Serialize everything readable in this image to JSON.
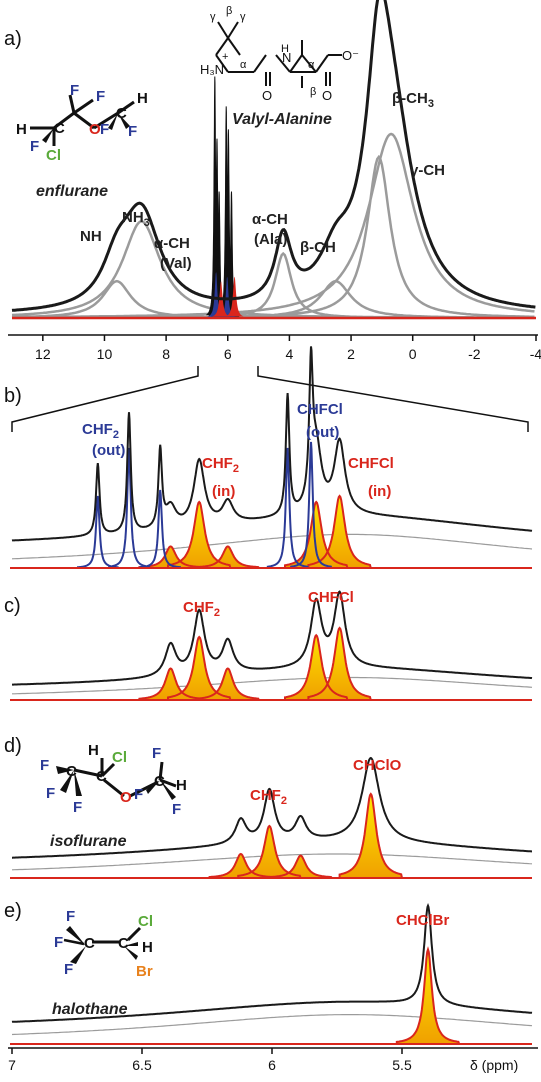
{
  "colors": {
    "black": "#1a1a1a",
    "gray": "#9b9b9b",
    "lightgray": "#b8b8b8",
    "red": "#d9261c",
    "blue": "#2b3a96",
    "fill_top": "#ffe000",
    "fill_bottom": "#f2a900",
    "green": "#5aaa3a",
    "orange": "#e8821e"
  },
  "panels": {
    "a": {
      "label": "a)",
      "molecule": "enflurane",
      "peptide": "Valyl-Alanine"
    },
    "b": {
      "label": "b)"
    },
    "c": {
      "label": "c)"
    },
    "d": {
      "label": "d)",
      "molecule": "isoflurane"
    },
    "e": {
      "label": "e)",
      "molecule": "halothane"
    }
  },
  "chart_data": [
    {
      "panel": "a",
      "type": "line",
      "xlim": [
        13,
        -4
      ],
      "xticks": [
        12,
        10,
        8,
        6,
        4,
        2,
        0,
        -2,
        -4
      ],
      "annotations": [
        "NH",
        "NH3",
        "α-CH (Val)",
        "α-CH (Ala)",
        "β-CH",
        "β-CH3",
        "γ-CH"
      ],
      "peaks": [
        {
          "label": "NH",
          "center": 9.6,
          "height": 0.16
        },
        {
          "label": "NH3",
          "center": 8.8,
          "height": 0.42
        },
        {
          "label": "α-CH (Ala)",
          "center": 4.2,
          "height": 0.28
        },
        {
          "label": "β-CH",
          "center": 2.5,
          "height": 0.16
        },
        {
          "label": "β-CH3",
          "center": 1.1,
          "height": 0.7
        },
        {
          "label": "γ-CH",
          "center": 0.7,
          "height": 0.8
        }
      ]
    },
    {
      "panel": "b",
      "type": "line",
      "annotations": [
        "CHF2 (out)",
        "CHF2 (in)",
        "CHFCl (out)",
        "CHFCl (in)"
      ],
      "peaks_out": [
        6.35,
        6.28,
        6.18,
        5.93,
        5.88
      ],
      "peaks_in": [
        6.28,
        6.17,
        5.83,
        5.74
      ]
    },
    {
      "panel": "c",
      "type": "line",
      "annotations": [
        "CHF2",
        "CHFCl"
      ],
      "peaks": [
        6.39,
        6.28,
        6.17,
        5.83,
        5.74
      ]
    },
    {
      "panel": "d",
      "type": "line",
      "annotations": [
        "CHF2",
        "CHClO"
      ],
      "peaks": [
        6.12,
        6.01,
        5.89,
        5.62
      ]
    },
    {
      "panel": "e",
      "type": "line",
      "annotations": [
        "CHClBr"
      ],
      "peaks": [
        5.4
      ],
      "xlim": [
        7,
        5
      ],
      "xticks": [
        "7",
        "6.5",
        "6",
        "5.5"
      ],
      "xlabel": "δ (ppm)"
    }
  ],
  "labels": {
    "a_NH": "NH",
    "a_NH3": "NH",
    "a_aCH1": "α-CH",
    "a_Val": "(Val)",
    "a_aCH2": "α-CH",
    "a_Ala": "(Ala)",
    "a_bCH": "β-CH",
    "a_bCH3": "β-CH",
    "a_gCH": "γ-CH",
    "b_CHF2_out": "CHF",
    "b_out1": "(out)",
    "b_CHF2_in": "CHF",
    "b_in1": "(in)",
    "b_CHFCl_out": "CHFCl",
    "b_out2": "(out)",
    "b_CHFCl_in": "CHFCl",
    "b_in2": "(in)",
    "c_CHF2": "CHF",
    "c_CHFCl": "CHFCl",
    "d_CHF2": "CHF",
    "d_CHClO": "CHClO",
    "e_CHClBr": "CHClBr",
    "sub2": "2",
    "sub3": "3"
  },
  "axis": {
    "a_ticks": [
      "12",
      "10",
      "8",
      "6",
      "4",
      "2",
      "0",
      "-2",
      "-4"
    ],
    "e_ticks": [
      "7",
      "6.5",
      "6",
      "5.5"
    ],
    "e_xlabel": "δ (ppm)"
  }
}
